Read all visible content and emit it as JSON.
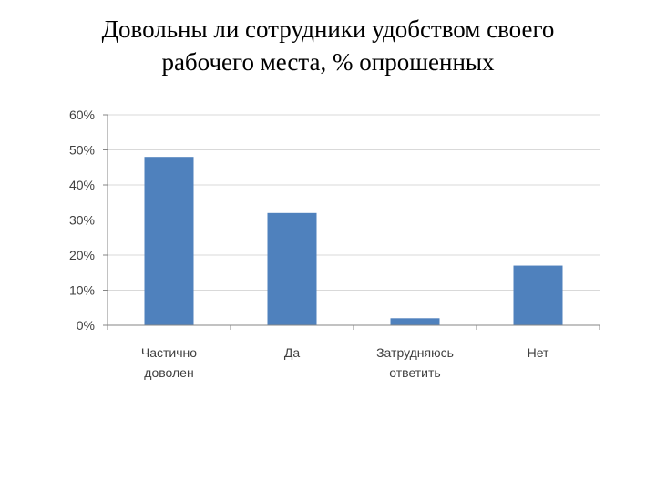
{
  "title_lines": [
    "Довольны ли сотрудники удобством своего",
    "рабочего места, % опрошенных"
  ],
  "chart_data": {
    "type": "bar",
    "title": "Довольны ли сотрудники удобством своего рабочего места, % опрошенных",
    "categories": [
      [
        "Частично",
        "доволен"
      ],
      [
        "Да"
      ],
      [
        "Затрудняюсь",
        "ответить"
      ],
      [
        "Нет"
      ]
    ],
    "values": [
      48,
      32,
      2,
      17
    ],
    "ylim": [
      0,
      60
    ],
    "yticks": [
      0,
      10,
      20,
      30,
      40,
      50,
      60
    ],
    "ytick_labels": [
      "0%",
      "10%",
      "20%",
      "30%",
      "40%",
      "50%",
      "60%"
    ],
    "grid": true,
    "bar_color": "#4f81bd",
    "grid_color": "#d9d9d9"
  }
}
